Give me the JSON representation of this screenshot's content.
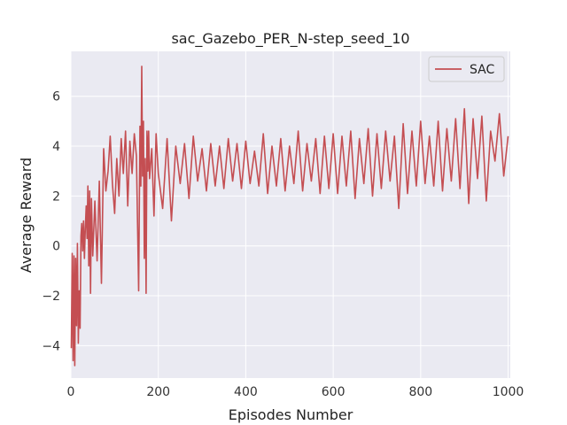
{
  "chart_data": {
    "type": "line",
    "title": "sac_Gazebo_PER_N-step_seed_10",
    "xlabel": "Episodes Number",
    "ylabel": "Average Reward",
    "xlim": [
      0,
      1005
    ],
    "ylim": [
      -5.3,
      7.8
    ],
    "xticks": [
      0,
      200,
      400,
      600,
      800,
      1000
    ],
    "yticks": [
      -4,
      -2,
      0,
      2,
      4,
      6
    ],
    "grid": true,
    "legend": {
      "position": "top-right"
    },
    "series": [
      {
        "name": "SAC",
        "color": "#c44e52",
        "x": [
          1,
          3,
          5,
          7,
          9,
          11,
          13,
          15,
          17,
          19,
          21,
          23,
          25,
          27,
          29,
          31,
          33,
          35,
          37,
          39,
          41,
          43,
          45,
          47,
          50,
          55,
          60,
          65,
          70,
          75,
          80,
          85,
          90,
          95,
          100,
          105,
          110,
          115,
          120,
          125,
          130,
          135,
          140,
          145,
          150,
          155,
          158,
          160,
          162,
          164,
          166,
          168,
          170,
          172,
          174,
          176,
          178,
          180,
          185,
          190,
          195,
          200,
          210,
          220,
          230,
          240,
          250,
          260,
          270,
          280,
          290,
          300,
          310,
          320,
          330,
          340,
          350,
          360,
          370,
          380,
          390,
          400,
          410,
          420,
          430,
          440,
          450,
          460,
          470,
          480,
          490,
          500,
          510,
          520,
          530,
          540,
          550,
          560,
          570,
          580,
          590,
          600,
          610,
          620,
          630,
          640,
          650,
          660,
          670,
          680,
          690,
          700,
          710,
          720,
          730,
          740,
          750,
          760,
          770,
          780,
          790,
          800,
          810,
          820,
          830,
          840,
          850,
          860,
          870,
          880,
          890,
          900,
          910,
          920,
          930,
          940,
          950,
          960,
          970,
          980,
          990,
          1000
        ],
        "y": [
          -4.1,
          -0.3,
          -4.6,
          -0.4,
          -4.8,
          -0.5,
          -3.2,
          0.1,
          -3.9,
          -1.8,
          -3.3,
          0.4,
          0.9,
          -0.2,
          1.0,
          -0.5,
          0.7,
          1.6,
          0.3,
          2.4,
          -0.8,
          2.2,
          -1.9,
          1.9,
          -0.4,
          1.8,
          -0.6,
          2.6,
          -1.5,
          3.9,
          2.2,
          3.0,
          4.4,
          2.5,
          1.3,
          3.5,
          2.0,
          4.3,
          2.9,
          4.6,
          1.6,
          4.2,
          2.9,
          4.5,
          3.6,
          -1.8,
          4.8,
          2.4,
          7.2,
          2.8,
          5.0,
          -0.5,
          3.5,
          -1.9,
          4.6,
          3.0,
          4.6,
          2.7,
          3.9,
          1.2,
          4.5,
          2.9,
          1.5,
          4.3,
          1.0,
          4.0,
          2.5,
          4.1,
          1.9,
          4.4,
          2.6,
          3.9,
          2.2,
          4.1,
          2.4,
          4.0,
          2.3,
          4.3,
          2.6,
          4.1,
          2.3,
          4.2,
          2.5,
          3.8,
          2.4,
          4.5,
          2.1,
          4.0,
          2.4,
          4.3,
          2.2,
          4.0,
          2.5,
          4.6,
          2.2,
          4.1,
          2.6,
          4.3,
          2.1,
          4.4,
          2.3,
          4.5,
          2.1,
          4.4,
          2.4,
          4.6,
          1.9,
          4.3,
          2.5,
          4.7,
          2.0,
          4.5,
          2.3,
          4.6,
          2.6,
          4.4,
          1.5,
          4.9,
          2.1,
          4.6,
          2.4,
          5.0,
          2.5,
          4.4,
          2.4,
          5.0,
          2.2,
          4.7,
          2.6,
          5.1,
          2.3,
          5.5,
          1.7,
          5.1,
          2.7,
          5.2,
          1.8,
          4.6,
          3.4,
          5.3,
          2.8,
          4.4
        ]
      }
    ]
  }
}
